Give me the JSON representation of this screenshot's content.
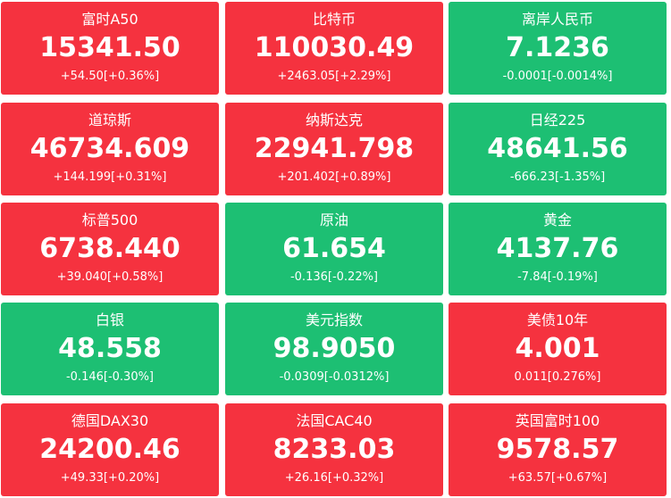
{
  "colors": {
    "up": "#f5323f",
    "down": "#1dbf73",
    "text": "#ffffff"
  },
  "tiles": [
    {
      "name": "富时A50",
      "price": "15341.50",
      "change": "+54.50[+0.36%]",
      "trend": "up"
    },
    {
      "name": "比特币",
      "price": "110030.49",
      "change": "+2463.05[+2.29%]",
      "trend": "up"
    },
    {
      "name": "离岸人民币",
      "price": "7.1236",
      "change": "-0.0001[-0.0014%]",
      "trend": "down"
    },
    {
      "name": "道琼斯",
      "price": "46734.609",
      "change": "+144.199[+0.31%]",
      "trend": "up"
    },
    {
      "name": "纳斯达克",
      "price": "22941.798",
      "change": "+201.402[+0.89%]",
      "trend": "up"
    },
    {
      "name": "日经225",
      "price": "48641.56",
      "change": "-666.23[-1.35%]",
      "trend": "down"
    },
    {
      "name": "标普500",
      "price": "6738.440",
      "change": "+39.040[+0.58%]",
      "trend": "up"
    },
    {
      "name": "原油",
      "price": "61.654",
      "change": "-0.136[-0.22%]",
      "trend": "down"
    },
    {
      "name": "黄金",
      "price": "4137.76",
      "change": "-7.84[-0.19%]",
      "trend": "down"
    },
    {
      "name": "白银",
      "price": "48.558",
      "change": "-0.146[-0.30%]",
      "trend": "down"
    },
    {
      "name": "美元指数",
      "price": "98.9050",
      "change": "-0.0309[-0.0312%]",
      "trend": "down"
    },
    {
      "name": "美债10年",
      "price": "4.001",
      "change": "0.011[0.276%]",
      "trend": "up"
    },
    {
      "name": "德国DAX30",
      "price": "24200.46",
      "change": "+49.33[+0.20%]",
      "trend": "up"
    },
    {
      "name": "法国CAC40",
      "price": "8233.03",
      "change": "+26.16[+0.32%]",
      "trend": "up"
    },
    {
      "name": "英国富时100",
      "price": "9578.57",
      "change": "+63.57[+0.67%]",
      "trend": "up"
    }
  ]
}
